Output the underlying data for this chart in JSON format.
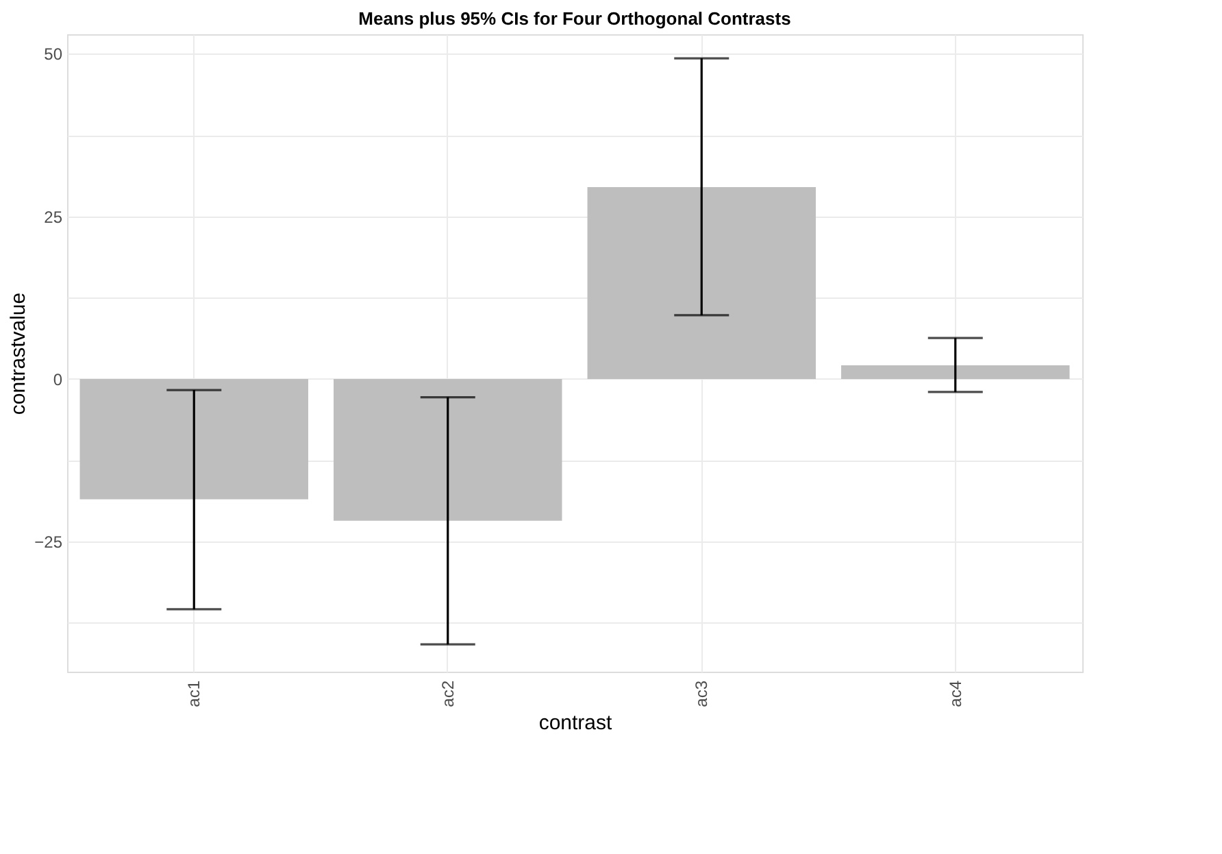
{
  "chart_data": {
    "type": "bar",
    "title": "Means plus 95% CIs for Four Orthogonal Contrasts",
    "xlabel": "contrast",
    "ylabel": "contrastvalue",
    "categories": [
      "ac1",
      "ac2",
      "ac3",
      "ac4"
    ],
    "values": [
      -18.5,
      -21.8,
      29.5,
      2.1
    ],
    "errors": [
      [
        -35.4,
        -1.7
      ],
      [
        -40.8,
        -2.8
      ],
      [
        9.8,
        49.3
      ],
      [
        -2.0,
        6.3
      ]
    ],
    "color": "#bebebe",
    "ylim": [
      -45,
      53
    ],
    "yticks": [
      {
        "value": -37.5,
        "label": null
      },
      -25,
      {
        "value": -12.5,
        "label": null
      },
      0,
      {
        "value": 12.5,
        "label": null
      },
      25,
      {
        "value": 37.5,
        "label": null
      },
      50
    ],
    "grid": true
  }
}
